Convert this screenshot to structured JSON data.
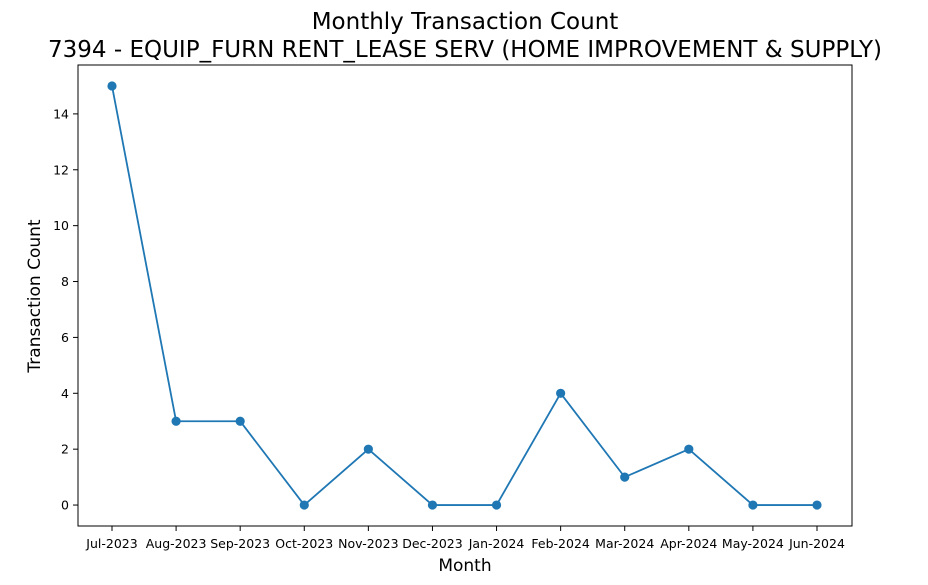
{
  "chart_data": {
    "type": "line",
    "title": "Monthly Transaction Count",
    "subtitle": "7394 - EQUIP_FURN RENT_LEASE SERV (HOME IMPROVEMENT & SUPPLY)",
    "xlabel": "Month",
    "ylabel": "Transaction Count",
    "categories": [
      "Jul-2023",
      "Aug-2023",
      "Sep-2023",
      "Oct-2023",
      "Nov-2023",
      "Dec-2023",
      "Jan-2024",
      "Feb-2024",
      "Mar-2024",
      "Apr-2024",
      "May-2024",
      "Jun-2024"
    ],
    "series": [
      {
        "values": [
          15,
          3,
          3,
          0,
          2,
          0,
          0,
          4,
          1,
          2,
          0,
          0
        ]
      }
    ],
    "ylim": [
      -0.75,
      15.75
    ],
    "yticks": [
      0,
      2,
      4,
      6,
      8,
      10,
      12,
      14
    ],
    "grid": false,
    "legend": "none",
    "line_color": "#1f77b4",
    "marker": "circle"
  }
}
